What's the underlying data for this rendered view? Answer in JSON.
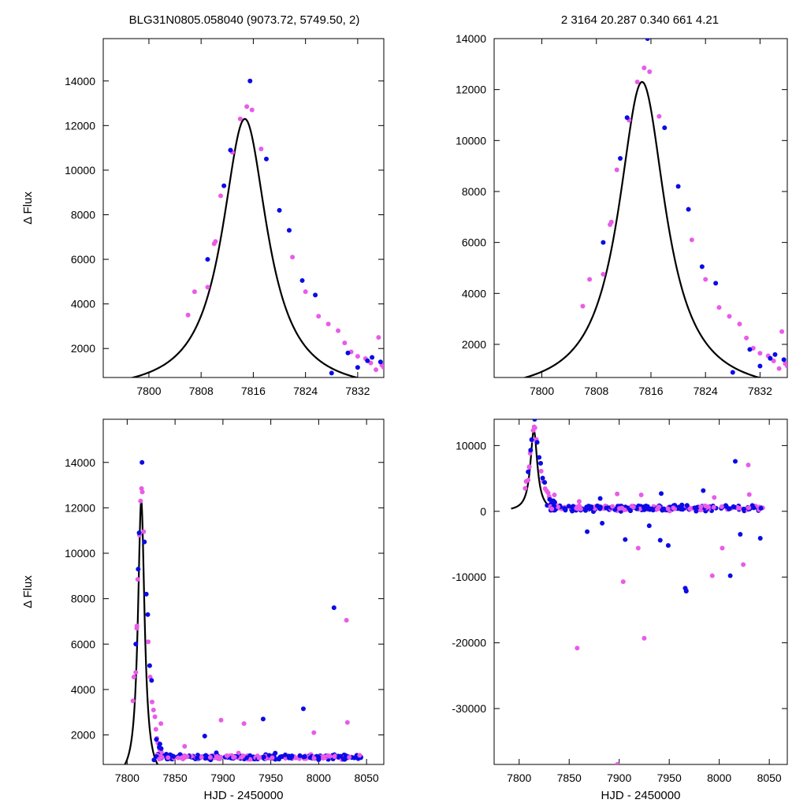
{
  "figure": {
    "title_left": "BLG31N0805.058040 (9073.72, 5749.50,    2)",
    "title_right": "2    3164    20.287    0.340    661    4.21"
  },
  "colors": {
    "model": "#000000",
    "series_a": "#0b0be6",
    "series_b": "#e85ce8"
  },
  "chart_data": [
    {
      "id": "top-left",
      "type": "scatter",
      "xlabel": "",
      "ylabel": "Δ Flux",
      "xlim": [
        7793,
        7836
      ],
      "ylim": [
        700,
        15900
      ],
      "xticks": [
        7800,
        7808,
        7816,
        7824,
        7832
      ],
      "yticks": [
        2000,
        4000,
        6000,
        8000,
        10000,
        12000,
        14000
      ],
      "legend": "none",
      "grid": false
    },
    {
      "id": "top-right",
      "type": "scatter",
      "xlabel": "",
      "ylabel": "",
      "xlim": [
        7793,
        7836
      ],
      "ylim": [
        700,
        14000
      ],
      "xticks": [
        7800,
        7808,
        7816,
        7824,
        7832
      ],
      "yticks": [
        2000,
        4000,
        6000,
        8000,
        10000,
        12000,
        14000
      ],
      "legend": "none",
      "grid": false
    },
    {
      "id": "bottom-left",
      "type": "scatter",
      "xlabel": "HJD - 2450000",
      "ylabel": "Δ Flux",
      "xlim": [
        7775,
        8068
      ],
      "ylim": [
        700,
        15900
      ],
      "xticks": [
        7800,
        7850,
        7900,
        7950,
        8000,
        8050
      ],
      "yticks": [
        2000,
        4000,
        6000,
        8000,
        10000,
        12000,
        14000
      ],
      "legend": "none",
      "grid": false
    },
    {
      "id": "bottom-right",
      "type": "scatter",
      "xlabel": "HJD - 2450000",
      "ylabel": "",
      "xlim": [
        7775,
        8068
      ],
      "ylim": [
        -38500,
        14000
      ],
      "xticks": [
        7800,
        7850,
        7900,
        7950,
        8000,
        8050
      ],
      "yticks": [
        -30000,
        -20000,
        -10000,
        0,
        10000
      ],
      "legend": "none",
      "grid": false
    }
  ],
  "model": {
    "t0": 7814.7,
    "peak": 12300,
    "base": 0,
    "halfwidth": 4.2
  },
  "peak_points": {
    "series_a": [
      [
        7809,
        6000
      ],
      [
        7811.5,
        9300
      ],
      [
        7812.5,
        10900
      ],
      [
        7815.5,
        14000
      ],
      [
        7818,
        10500
      ],
      [
        7820,
        8200
      ],
      [
        7821.5,
        7300
      ],
      [
        7823.5,
        5050
      ],
      [
        7825.5,
        4400
      ],
      [
        7828,
        900
      ],
      [
        7830.5,
        1800
      ],
      [
        7832,
        1150
      ],
      [
        7833.5,
        1450
      ],
      [
        7834.2,
        1600
      ],
      [
        7835.5,
        1400
      ]
    ],
    "series_b": [
      [
        7806,
        3500
      ],
      [
        7807,
        4550
      ],
      [
        7809,
        4750
      ],
      [
        7810,
        6700
      ],
      [
        7810.2,
        6800
      ],
      [
        7811,
        8850
      ],
      [
        7812.8,
        10800
      ],
      [
        7814,
        12300
      ],
      [
        7815,
        12850
      ],
      [
        7815.8,
        12700
      ],
      [
        7817.2,
        10950
      ],
      [
        7822,
        6100
      ],
      [
        7824,
        4550
      ],
      [
        7826,
        3450
      ],
      [
        7827.5,
        3100
      ],
      [
        7829,
        2800
      ],
      [
        7830,
        2250
      ],
      [
        7831,
        1850
      ],
      [
        7832,
        1650
      ],
      [
        7833.2,
        1550
      ],
      [
        7834,
        1350
      ],
      [
        7834.8,
        1050
      ],
      [
        7835.2,
        2500
      ],
      [
        7835.7,
        1250
      ],
      [
        7836,
        1150
      ]
    ]
  },
  "late_points": {
    "series_a": [
      [
        7881,
        1950
      ],
      [
        7942,
        2700
      ],
      [
        7984,
        3150
      ],
      [
        8016,
        7600
      ]
    ],
    "series_b": [
      [
        7922,
        2500
      ],
      [
        7898,
        2650
      ],
      [
        7860,
        1500
      ],
      [
        7995,
        2100
      ],
      [
        8029,
        7050
      ],
      [
        8030,
        2550
      ],
      [
        7925,
        -19300
      ],
      [
        7858,
        -20800
      ],
      [
        7904,
        -10700
      ],
      [
        7898,
        -38500
      ],
      [
        8024,
        -8100
      ],
      [
        8003,
        -5600
      ],
      [
        7967,
        -12000
      ],
      [
        7993,
        -9800
      ],
      [
        7919,
        -5600
      ]
    ],
    "series_a_low": [
      [
        7966,
        -11700
      ],
      [
        7967,
        -12150
      ],
      [
        7941,
        -4400
      ],
      [
        7949,
        -5200
      ],
      [
        7906,
        -4300
      ],
      [
        8011,
        -9800
      ],
      [
        8021,
        -3500
      ],
      [
        8041,
        -4100
      ],
      [
        7868,
        -3100
      ],
      [
        7930,
        -2200
      ],
      [
        7883,
        -1800
      ]
    ]
  }
}
